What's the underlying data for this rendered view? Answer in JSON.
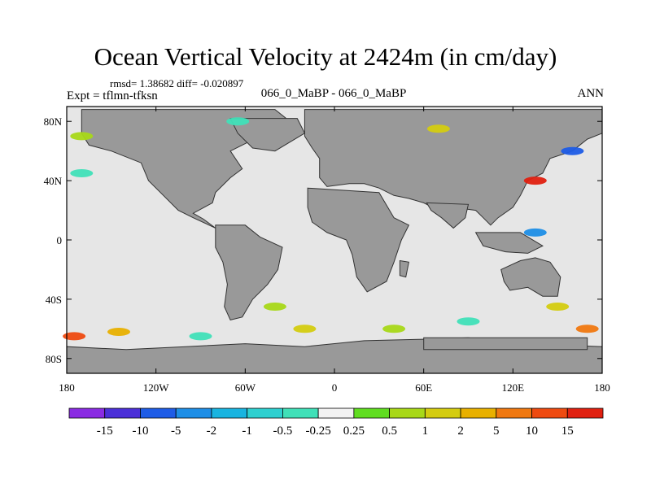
{
  "header": {
    "title": "Ocean Vertical Velocity at 2424m (in cm/day)",
    "stats": "rmsd= 1.38682 diff= -0.020897",
    "expt": "Expt = tflmn-tfksn",
    "center_label": "066_0_MaBP - 066_0_MaBP",
    "season": "ANN"
  },
  "chart_data": {
    "type": "heatmap",
    "title": "Ocean Vertical Velocity at 2424m (in cm/day)",
    "xlabel": "",
    "ylabel": "",
    "xlim": [
      -180,
      180
    ],
    "ylim": [
      -90,
      90
    ],
    "x_ticks": [
      {
        "value": -180,
        "label": "180"
      },
      {
        "value": -120,
        "label": "120W"
      },
      {
        "value": -60,
        "label": "60W"
      },
      {
        "value": 0,
        "label": "0"
      },
      {
        "value": 60,
        "label": "60E"
      },
      {
        "value": 120,
        "label": "120E"
      },
      {
        "value": 180,
        "label": "180"
      }
    ],
    "y_ticks": [
      {
        "value": 80,
        "label": "80N"
      },
      {
        "value": 40,
        "label": "40N"
      },
      {
        "value": 0,
        "label": "0"
      },
      {
        "value": -40,
        "label": "40S"
      },
      {
        "value": -80,
        "label": "80S"
      }
    ],
    "colorbar": {
      "labels": [
        "-15",
        "-10",
        "-5",
        "-2",
        "-1",
        "-0.5",
        "-0.25",
        "0.25",
        "0.5",
        "1",
        "2",
        "5",
        "10",
        "15"
      ],
      "colors": [
        "#8a2be2",
        "#4b2fd8",
        "#1e5ce6",
        "#1e8ee6",
        "#19b4e0",
        "#2ed0d0",
        "#40e0b8",
        "#f2f2f2",
        "#60dd20",
        "#a8d818",
        "#d4cc10",
        "#e8b000",
        "#f07810",
        "#ee4a10",
        "#e02010"
      ]
    },
    "land_color": "#999999",
    "neutral_color": "#e6e6e6",
    "features": [
      {
        "lon": -170,
        "lat": 70,
        "value": 0.5
      },
      {
        "lon": -170,
        "lat": 45,
        "value": -0.5
      },
      {
        "lon": -175,
        "lat": -65,
        "value": 10
      },
      {
        "lon": -145,
        "lat": -62,
        "value": 2
      },
      {
        "lon": -90,
        "lat": -65,
        "value": -0.5
      },
      {
        "lon": -40,
        "lat": -45,
        "value": 0.5
      },
      {
        "lon": -20,
        "lat": -60,
        "value": 1
      },
      {
        "lon": 40,
        "lat": -60,
        "value": 0.5
      },
      {
        "lon": 90,
        "lat": -55,
        "value": -0.5
      },
      {
        "lon": 135,
        "lat": 40,
        "value": 15
      },
      {
        "lon": 160,
        "lat": 60,
        "value": -10
      },
      {
        "lon": 135,
        "lat": 5,
        "value": -5
      },
      {
        "lon": 150,
        "lat": -45,
        "value": 1
      },
      {
        "lon": 170,
        "lat": -60,
        "value": 5
      },
      {
        "lon": 70,
        "lat": 75,
        "value": 1
      },
      {
        "lon": -65,
        "lat": 80,
        "value": -0.5
      }
    ]
  }
}
